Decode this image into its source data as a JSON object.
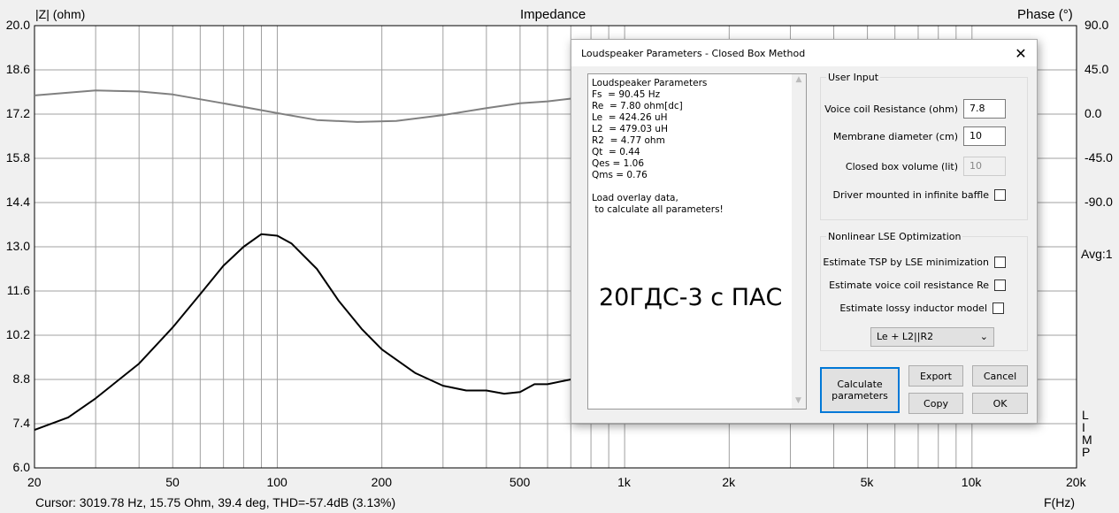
{
  "chart_data": {
    "type": "line",
    "title": "Impedance",
    "ylabel": "|Z| (ohm)",
    "y2label": "Phase (°)",
    "xlabel": "F(Hz)",
    "xscale": "log",
    "xlim": [
      20,
      20000
    ],
    "ylim": [
      6.0,
      20.0
    ],
    "y2lim": [
      -360,
      90
    ],
    "yticks": [
      "20.0",
      "18.6",
      "17.2",
      "15.8",
      "14.4",
      "13.0",
      "11.6",
      "10.2",
      "8.8",
      "7.4",
      "6.0"
    ],
    "y2ticks": [
      "90.0",
      "45.0",
      "0.0",
      "-45.0",
      "-90.0"
    ],
    "xticks": [
      {
        "v": 20,
        "t": "20"
      },
      {
        "v": 50,
        "t": "50"
      },
      {
        "v": 100,
        "t": "100"
      },
      {
        "v": 200,
        "t": "200"
      },
      {
        "v": 500,
        "t": "500"
      },
      {
        "v": 1000,
        "t": "1k"
      },
      {
        "v": 2000,
        "t": "2k"
      },
      {
        "v": 5000,
        "t": "5k"
      },
      {
        "v": 10000,
        "t": "10k"
      },
      {
        "v": 20000,
        "t": "20k"
      }
    ],
    "grid": true,
    "series": [
      {
        "name": "Impedance",
        "color": "#000000",
        "x": [
          20,
          25,
          30,
          40,
          50,
          60,
          70,
          80,
          90,
          100,
          110,
          130,
          150,
          175,
          200,
          250,
          300,
          350,
          400,
          450,
          500,
          550,
          600,
          700,
          750
        ],
        "y": [
          7.2,
          7.6,
          8.2,
          9.3,
          10.45,
          11.5,
          12.4,
          13.0,
          13.4,
          13.35,
          13.1,
          12.3,
          11.3,
          10.4,
          9.75,
          9.0,
          8.6,
          8.45,
          8.45,
          8.35,
          8.4,
          8.65,
          8.65,
          8.8,
          9.0
        ]
      },
      {
        "name": "Phase",
        "color": "#808080",
        "axis": "right",
        "x": [
          20,
          30,
          40,
          50,
          70,
          100,
          130,
          170,
          220,
          300,
          400,
          500,
          600,
          750
        ],
        "y": [
          19,
          24,
          23,
          20,
          11,
          1,
          -6,
          -8,
          -7,
          -1,
          6,
          11,
          13,
          17
        ]
      }
    ]
  },
  "right_labels": {
    "avg": "Avg:1",
    "mode": [
      "L",
      "I",
      "M",
      "P"
    ]
  },
  "status": "Cursor: 3019.78 Hz, 15.75 Ohm, 39.4 deg, THD=-57.4dB (3.13%)",
  "dialog": {
    "title": "Loudspeaker Parameters - Closed Box Method",
    "close": "✕",
    "results": [
      "Loudspeaker Parameters",
      "Fs  = 90.45 Hz",
      "Re  = 7.80 ohm[dc]",
      "Le  = 424.26 uH",
      "L2  = 479.03 uH",
      "R2  = 4.77 ohm",
      "Qt  = 0.44",
      "Qes = 1.06",
      "Qms = 0.76",
      "",
      "Load overlay data,",
      " to calculate all parameters!"
    ],
    "annotation": "20ГДС-3 с ПАС",
    "user_input": {
      "legend": "User Input",
      "vcr_label": "Voice coil Resistance (ohm)",
      "vcr_value": "7.8",
      "diam_label": "Membrane diameter (cm)",
      "diam_value": "10",
      "vol_label": "Closed box volume (lit)",
      "vol_value": "10",
      "baffle_label": "Driver mounted in infinite baffle"
    },
    "lse": {
      "legend": "Nonlinear LSE Optimization",
      "tsp_label": "Estimate TSP by LSE minimization",
      "re_label": "Estimate voice coil resistance Re",
      "lossy_label": "Estimate lossy inductor model",
      "model": "Le + L2||R2"
    },
    "buttons": {
      "calculate": "Calculate parameters",
      "export": "Export",
      "cancel": "Cancel",
      "copy": "Copy",
      "ok": "OK"
    }
  }
}
